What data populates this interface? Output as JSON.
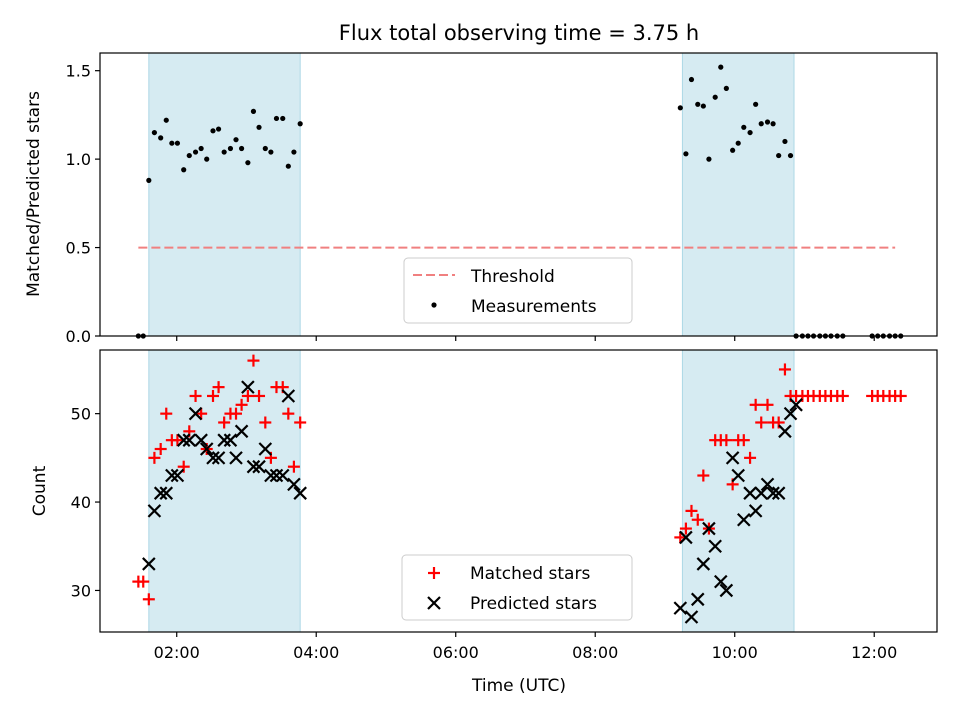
{
  "chart_data": [
    {
      "type": "scatter",
      "title": "Flux total observing time = 3.75 h",
      "xlabel": "",
      "ylabel": "Matched/Predicted stars",
      "xlim": [
        0.9,
        12.9
      ],
      "ylim": [
        0,
        1.6
      ],
      "yticks": [
        0,
        0.5,
        1,
        1.5
      ],
      "ytick_labels": [
        "0.0",
        "0.5",
        "1.0",
        "1.5"
      ],
      "xticks": [
        2,
        4,
        6,
        8,
        10,
        12
      ],
      "grid": false,
      "legend_position": "lower-center",
      "shaded_intervals": [
        [
          1.6,
          3.77
        ],
        [
          9.25,
          10.85
        ]
      ],
      "shaded_color": "#add8e6",
      "threshold": {
        "name": "Threshold",
        "value": 0.5,
        "x_range": [
          1.45,
          12.3
        ],
        "color": "#f08080"
      },
      "series": [
        {
          "name": "Measurements",
          "color": "#000000",
          "x": [
            1.45,
            1.52,
            1.6,
            1.68,
            1.77,
            1.85,
            1.93,
            2.01,
            2.1,
            2.18,
            2.27,
            2.35,
            2.43,
            2.52,
            2.6,
            2.68,
            2.77,
            2.85,
            2.93,
            3.02,
            3.1,
            3.18,
            3.27,
            3.35,
            3.43,
            3.52,
            3.6,
            3.68,
            3.77,
            9.22,
            9.3,
            9.38,
            9.47,
            9.55,
            9.63,
            9.72,
            9.8,
            9.88,
            9.97,
            10.05,
            10.13,
            10.22,
            10.3,
            10.38,
            10.47,
            10.55,
            10.63,
            10.72,
            10.8,
            10.88,
            10.97,
            11.05,
            11.13,
            11.22,
            11.3,
            11.38,
            11.47,
            11.55,
            11.97,
            12.05,
            12.13,
            12.22,
            12.3,
            12.38
          ],
          "y": [
            0.0,
            0.0,
            0.88,
            1.15,
            1.12,
            1.22,
            1.09,
            1.09,
            0.94,
            1.02,
            1.04,
            1.06,
            1.0,
            1.16,
            1.17,
            1.04,
            1.06,
            1.11,
            1.06,
            0.98,
            1.27,
            1.18,
            1.06,
            1.04,
            1.23,
            1.23,
            0.96,
            1.04,
            1.2,
            1.29,
            1.03,
            1.45,
            1.31,
            1.3,
            1.0,
            1.35,
            1.52,
            1.4,
            1.05,
            1.09,
            1.18,
            1.15,
            1.31,
            1.2,
            1.21,
            1.2,
            1.02,
            1.1,
            1.02,
            0.0,
            0.0,
            0.0,
            0.0,
            0.0,
            0.0,
            0.0,
            0.0,
            0.0,
            0.0,
            0.0,
            0.0,
            0.0,
            0.0,
            0.0
          ]
        }
      ]
    },
    {
      "type": "scatter",
      "title": "",
      "xlabel": "Time (UTC)",
      "ylabel": "Count",
      "xlim": [
        0.9,
        12.9
      ],
      "ylim": [
        25.3,
        57.2
      ],
      "yticks": [
        30,
        40,
        50
      ],
      "ytick_labels": [
        "30",
        "40",
        "50"
      ],
      "xticks": [
        2,
        4,
        6,
        8,
        10,
        12
      ],
      "xtick_labels": [
        "02:00",
        "04:00",
        "06:00",
        "08:00",
        "10:00",
        "12:00"
      ],
      "grid": false,
      "legend_position": "lower-center",
      "shaded_intervals": [
        [
          1.6,
          3.77
        ],
        [
          9.25,
          10.85
        ]
      ],
      "shaded_color": "#add8e6",
      "series": [
        {
          "name": "Matched stars",
          "color": "#ff0000",
          "x": [
            1.45,
            1.52,
            1.6,
            1.68,
            1.77,
            1.85,
            1.93,
            2.01,
            2.1,
            2.18,
            2.27,
            2.35,
            2.43,
            2.52,
            2.6,
            2.68,
            2.77,
            2.85,
            2.93,
            3.02,
            3.1,
            3.18,
            3.27,
            3.35,
            3.43,
            3.52,
            3.6,
            3.68,
            3.77,
            9.22,
            9.3,
            9.38,
            9.47,
            9.55,
            9.63,
            9.72,
            9.8,
            9.88,
            9.97,
            10.05,
            10.13,
            10.22,
            10.3,
            10.38,
            10.47,
            10.55,
            10.63,
            10.72,
            10.8,
            10.88,
            10.97,
            11.05,
            11.13,
            11.22,
            11.3,
            11.38,
            11.47,
            11.55,
            11.97,
            12.05,
            12.13,
            12.22,
            12.3,
            12.38
          ],
          "y": [
            31,
            31,
            29,
            45,
            46,
            50,
            47,
            47,
            44,
            48,
            52,
            50,
            46,
            52,
            53,
            49,
            50,
            50,
            51,
            52,
            56,
            52,
            49,
            45,
            53,
            53,
            50,
            44,
            49,
            36,
            37,
            39,
            38,
            43,
            37,
            47,
            47,
            47,
            42,
            47,
            47,
            45,
            51,
            49,
            51,
            49,
            49,
            55,
            52,
            52,
            52,
            52,
            52,
            52,
            52,
            52,
            52,
            52,
            52,
            52,
            52,
            52,
            52,
            52
          ]
        },
        {
          "name": "Predicted stars",
          "color": "#000000",
          "x": [
            1.6,
            1.68,
            1.77,
            1.85,
            1.93,
            2.01,
            2.1,
            2.18,
            2.27,
            2.35,
            2.43,
            2.52,
            2.6,
            2.68,
            2.77,
            2.85,
            2.93,
            3.02,
            3.1,
            3.18,
            3.27,
            3.35,
            3.43,
            3.52,
            3.6,
            3.68,
            3.77,
            9.22,
            9.3,
            9.38,
            9.47,
            9.55,
            9.63,
            9.72,
            9.8,
            9.88,
            9.97,
            10.05,
            10.13,
            10.22,
            10.3,
            10.38,
            10.47,
            10.55,
            10.63,
            10.72,
            10.8,
            10.88
          ],
          "y": [
            33,
            39,
            41,
            41,
            43,
            43,
            47,
            47,
            50,
            47,
            46,
            45,
            45,
            47,
            47,
            45,
            48,
            53,
            44,
            44,
            46,
            43,
            43,
            43,
            52,
            42,
            41,
            28,
            36,
            27,
            29,
            33,
            37,
            35,
            31,
            30,
            45,
            43,
            38,
            41,
            39,
            41,
            42,
            41,
            41,
            48,
            50,
            51
          ]
        }
      ]
    }
  ]
}
